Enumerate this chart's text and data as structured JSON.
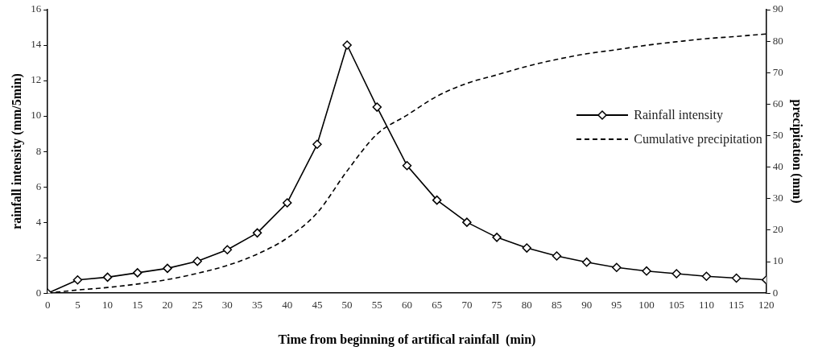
{
  "chart_data": {
    "type": "line",
    "xlabel": "Time from beginning of artifical rainfall  (min)",
    "ylabel": "rainfall intensity (mm/5min)",
    "y2label": "precipitation (mm)",
    "x": [
      0,
      5,
      10,
      15,
      20,
      25,
      30,
      35,
      40,
      45,
      50,
      55,
      60,
      65,
      70,
      75,
      80,
      85,
      90,
      95,
      100,
      105,
      110,
      115,
      120
    ],
    "xlim": [
      0,
      120
    ],
    "xticks": [
      0,
      5,
      10,
      15,
      20,
      25,
      30,
      35,
      40,
      45,
      50,
      55,
      60,
      65,
      70,
      75,
      80,
      85,
      90,
      95,
      100,
      105,
      110,
      115,
      120
    ],
    "ylim": [
      0,
      16
    ],
    "yticks": [
      0,
      2,
      4,
      6,
      8,
      10,
      12,
      14,
      16
    ],
    "y2lim": [
      0,
      90
    ],
    "y2ticks": [
      0,
      10,
      20,
      30,
      40,
      50,
      60,
      70,
      80,
      90
    ],
    "grid": false,
    "legend": "right",
    "series": [
      {
        "name": "Rainfall intensity",
        "color": "#000000",
        "marker": "diamond",
        "line_style": "solid",
        "values": [
          0,
          0.75,
          0.9,
          1.15,
          1.4,
          1.8,
          2.45,
          3.4,
          5.1,
          8.4,
          14,
          10.5,
          7.2,
          5.25,
          4.0,
          3.15,
          2.55,
          2.1,
          1.75,
          1.45,
          1.25,
          1.1,
          0.95,
          0.85,
          0.75
        ]
      },
      {
        "name": "Cumulative precipitation",
        "color": "#000000",
        "marker": "none",
        "line_style": "dashed",
        "axis": "y2",
        "values": [
          0,
          1.0,
          1.8,
          2.9,
          4.3,
          6.3,
          8.8,
          12.4,
          17.5,
          25.5,
          38.8,
          50.5,
          56.5,
          62.5,
          66.6,
          69.3,
          72,
          74.2,
          76,
          77.3,
          78.7,
          79.8,
          80.8,
          81.5,
          82.3
        ]
      }
    ]
  }
}
